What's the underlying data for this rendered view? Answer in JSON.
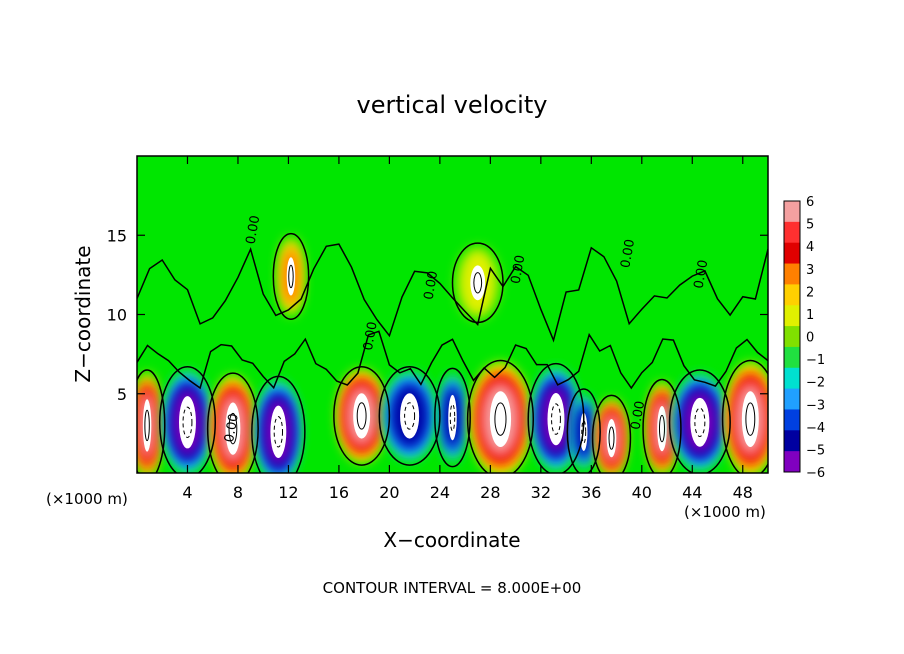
{
  "chart_data": {
    "type": "heatmap",
    "title": "vertical velocity",
    "xlabel": "X−coordinate",
    "ylabel": "Z−coordinate",
    "x_unit_label_left": "(×1000 m)",
    "x_unit_label_right": "(×1000 m)",
    "xlim": [
      0,
      50
    ],
    "ylim": [
      0,
      20
    ],
    "x_ticks": [
      "4",
      "8",
      "12",
      "16",
      "20",
      "24",
      "28",
      "32",
      "36",
      "40",
      "44",
      "48"
    ],
    "x_tick_values": [
      4,
      8,
      12,
      16,
      20,
      24,
      28,
      32,
      36,
      40,
      44,
      48
    ],
    "y_ticks": [
      "5",
      "10",
      "15"
    ],
    "y_tick_values": [
      5,
      10,
      15
    ],
    "footer": "CONTOUR INTERVAL = 8.000E+00",
    "contour_labels": [
      {
        "text": "0.00",
        "x": 7.8,
        "z": 2.8
      },
      {
        "text": "0.00",
        "x": 9.5,
        "z": 15.3
      },
      {
        "text": "0.00",
        "x": 23.6,
        "z": 11.8
      },
      {
        "text": "0.00",
        "x": 30.5,
        "z": 12.8
      },
      {
        "text": "0.00",
        "x": 39.2,
        "z": 13.8
      },
      {
        "text": "0.00",
        "x": 45.0,
        "z": 12.5
      },
      {
        "text": "0.00",
        "x": 18.8,
        "z": 8.6
      },
      {
        "text": "0.00",
        "x": 40.0,
        "z": 3.6
      }
    ],
    "colorbar": {
      "labels": [
        "6",
        "5",
        "4",
        "3",
        "2",
        "1",
        "0",
        "−1",
        "−2",
        "−3",
        "−4",
        "−5",
        "−6"
      ],
      "values": [
        6,
        5,
        4,
        3,
        2,
        1,
        0,
        -1,
        -2,
        -3,
        -4,
        -5,
        -6
      ],
      "colors": [
        "#f4a0a0",
        "#ff3030",
        "#e00000",
        "#ff8000",
        "#ffd000",
        "#e0f000",
        "#80e000",
        "#20e040",
        "#00e0d0",
        "#20a0ff",
        "#0040e0",
        "#0000a0",
        "#8000c0"
      ]
    },
    "background_color": "#00e600",
    "cells": [
      {
        "x": 0.8,
        "z": 3,
        "rx": 0.8,
        "rz": 3,
        "v": 6
      },
      {
        "x": 4.0,
        "z": 3.2,
        "rx": 1.6,
        "rz": 3,
        "v": -6
      },
      {
        "x": 7.6,
        "z": 2.8,
        "rx": 1.4,
        "rz": 3,
        "v": 6
      },
      {
        "x": 11.2,
        "z": 2.6,
        "rx": 1.5,
        "rz": 3,
        "v": -6
      },
      {
        "x": 17.8,
        "z": 3.6,
        "rx": 1.6,
        "rz": 2.6,
        "v": 6
      },
      {
        "x": 21.6,
        "z": 3.6,
        "rx": 1.8,
        "rz": 2.6,
        "v": -5
      },
      {
        "x": 25.0,
        "z": 3.5,
        "rx": 0.8,
        "rz": 2.6,
        "v": -5
      },
      {
        "x": 28.8,
        "z": 3.4,
        "rx": 2.0,
        "rz": 3.2,
        "v": 6
      },
      {
        "x": 33.2,
        "z": 3.4,
        "rx": 1.6,
        "rz": 3.0,
        "v": -6
      },
      {
        "x": 35.4,
        "z": 2.6,
        "rx": 0.7,
        "rz": 2.2,
        "v": -5
      },
      {
        "x": 37.6,
        "z": 2.2,
        "rx": 0.9,
        "rz": 2.2,
        "v": 6
      },
      {
        "x": 41.6,
        "z": 2.8,
        "rx": 0.9,
        "rz": 2.6,
        "v": 6
      },
      {
        "x": 44.6,
        "z": 3.2,
        "rx": 1.8,
        "rz": 2.8,
        "v": -6
      },
      {
        "x": 48.6,
        "z": 3.4,
        "rx": 1.6,
        "rz": 3.2,
        "v": 6
      },
      {
        "x": 12.2,
        "z": 12.4,
        "rx": 0.8,
        "rz": 2.2,
        "v": 3
      },
      {
        "x": 27.0,
        "z": 12.0,
        "rx": 1.4,
        "rz": 2.0,
        "v": 1
      }
    ]
  }
}
